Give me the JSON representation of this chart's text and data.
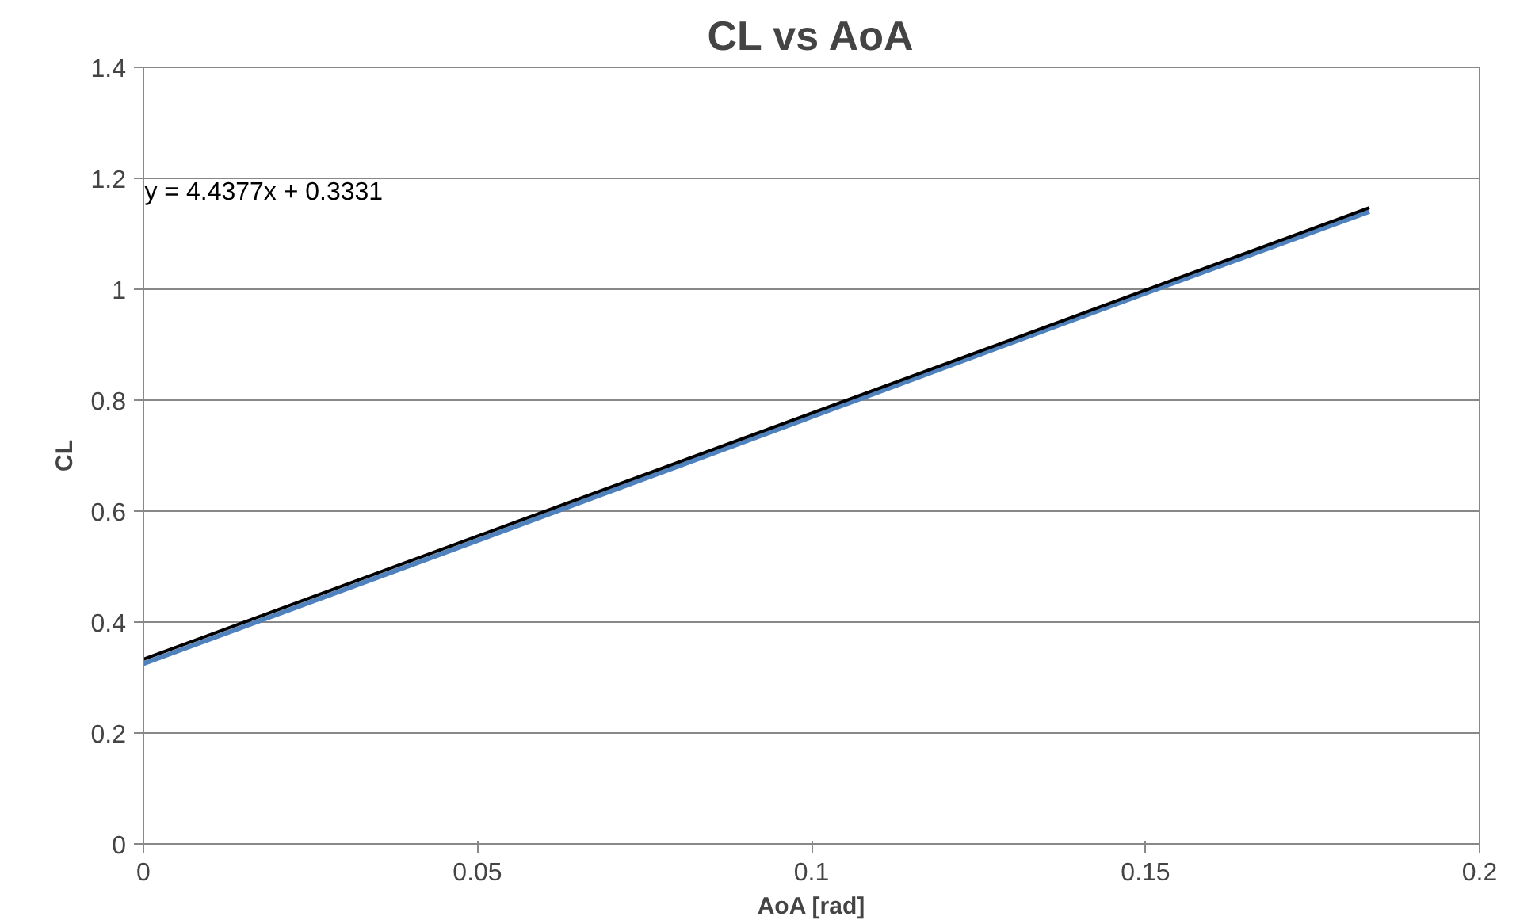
{
  "chart_data": {
    "type": "line",
    "title": "CL vs AoA",
    "xlabel": "AoA [rad]",
    "ylabel": "CL",
    "xlim": [
      0,
      0.2
    ],
    "xticks": [
      0,
      0.05,
      0.1,
      0.15,
      0.2
    ],
    "ylim": [
      0,
      1.4
    ],
    "yticks": [
      0,
      0.2,
      0.4,
      0.6,
      0.8,
      1,
      1.2,
      1.4
    ],
    "grid": "y",
    "series": [
      {
        "color": "#4f81bd",
        "x": [
          0,
          0.05,
          0.1,
          0.15,
          0.1835
        ],
        "values": [
          0.325,
          0.547,
          0.77,
          0.993,
          1.14
        ]
      },
      {
        "color": "#000000",
        "x": [
          0,
          0.1835
        ],
        "values": [
          0.333,
          1.147
        ]
      }
    ],
    "annotations": [
      "y = 4.4377x + 0.3331"
    ]
  }
}
